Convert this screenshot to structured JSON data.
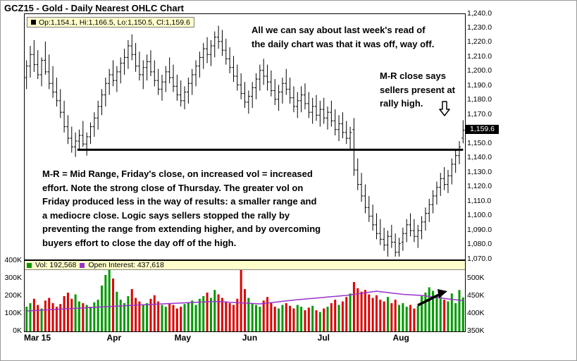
{
  "window_title": "GCZ15 - Gold - Daily Nearest OHLC Chart",
  "price_panel": {
    "ohlc_legend": "Op:1,154.1, Hi:1,166.5, Lo:1,150.5, Cl:1,159.6",
    "last_price_label": "1,159.6",
    "annotations": {
      "top_lines": [
        "All we can say about last week's read of",
        "the daily chart was that it was off, way off."
      ],
      "mr_lines": [
        "M-R close says",
        "sellers present at",
        "rally high."
      ],
      "paragraph_lines": [
        "M-R = Mid Range, Friday's close, on increased vol = increased",
        "effort.  Note the strong close of Thursday.  The greater vol on",
        "Friday produced less in the way of results: a smaller range and",
        "a mediocre close.  Logic says sellers stopped the rally by",
        "preventing the range from extending higher, and by overcoming",
        "buyers effort to close the day off of the high."
      ]
    }
  },
  "volume_panel": {
    "vol_legend": "Vol: 192,568",
    "oi_legend": "Open Interest: 437,618"
  },
  "colors": {
    "bar_color": "#000000",
    "up_volume": "#009900",
    "down_volume": "#dd0000",
    "oi_line": "#9933cc",
    "legend_bg": "#ffffcc",
    "last_price_bg": "#000000",
    "last_price_fg": "#ffffff"
  },
  "chart_data": {
    "type": "ohlc",
    "title": "GCZ15 - Gold - Daily Nearest OHLC Chart",
    "price_axis_range": [
      1070,
      1240
    ],
    "price_axis_tick_labels": [
      "1,240.0",
      "1,230.0",
      "1,220.0",
      "1,210.0",
      "1,200.0",
      "1,190.0",
      "1,180.0",
      "1,170.0",
      "1,160.0",
      "1,150.0",
      "1,140.0",
      "1,130.0",
      "1,120.0",
      "1,110.0",
      "1,100.0",
      "1,090.0",
      "1,080.0",
      "1,070.0"
    ],
    "volume_axis_range_thousands": [
      0,
      400
    ],
    "volume_axis_tick_labels": [
      "400K",
      "300K",
      "200K",
      "100K",
      "0K"
    ],
    "oi_axis_range_thousands": [
      350,
      550
    ],
    "oi_axis_tick_labels": [
      "500K",
      "450K",
      "400K",
      "350K"
    ],
    "x_axis_tick_labels": [
      "Mar 15",
      "Apr",
      "May",
      "Jun",
      "Jul",
      "Aug"
    ],
    "months": [
      {
        "label": "Mar 15",
        "index": 0
      },
      {
        "label": "Apr",
        "index": 22
      },
      {
        "label": "May",
        "index": 40
      },
      {
        "label": "Jun",
        "index": 58
      },
      {
        "label": "Jul",
        "index": 78
      },
      {
        "label": "Aug",
        "index": 98
      }
    ],
    "support_line": {
      "price": 1146,
      "from_index": 14,
      "to_index": 116
    },
    "last_bar": {
      "open": 1154.1,
      "high": 1166.5,
      "low": 1150.5,
      "close": 1159.6
    },
    "last_volume": 192568,
    "last_open_interest": 437618,
    "bars_ohlc": [
      [
        1196,
        1208,
        1188,
        1204
      ],
      [
        1204,
        1218,
        1196,
        1212
      ],
      [
        1212,
        1222,
        1200,
        1205
      ],
      [
        1205,
        1215,
        1195,
        1198
      ],
      [
        1198,
        1210,
        1190,
        1208
      ],
      [
        1208,
        1221,
        1198,
        1200
      ],
      [
        1200,
        1212,
        1188,
        1192
      ],
      [
        1192,
        1204,
        1182,
        1186
      ],
      [
        1186,
        1196,
        1176,
        1180
      ],
      [
        1180,
        1188,
        1168,
        1172
      ],
      [
        1172,
        1180,
        1158,
        1162
      ],
      [
        1162,
        1170,
        1150,
        1154
      ],
      [
        1154,
        1162,
        1144,
        1148
      ],
      [
        1148,
        1158,
        1141,
        1152
      ],
      [
        1152,
        1160,
        1146,
        1156
      ],
      [
        1156,
        1166,
        1148,
        1150
      ],
      [
        1150,
        1158,
        1142,
        1155
      ],
      [
        1155,
        1165,
        1150,
        1162
      ],
      [
        1162,
        1172,
        1155,
        1168
      ],
      [
        1168,
        1180,
        1160,
        1176
      ],
      [
        1176,
        1188,
        1170,
        1184
      ],
      [
        1184,
        1196,
        1176,
        1192
      ],
      [
        1192,
        1202,
        1184,
        1198
      ],
      [
        1198,
        1208,
        1190,
        1194
      ],
      [
        1194,
        1204,
        1186,
        1200
      ],
      [
        1200,
        1210,
        1192,
        1206
      ],
      [
        1206,
        1216,
        1198,
        1210
      ],
      [
        1210,
        1222,
        1202,
        1218
      ],
      [
        1218,
        1226,
        1208,
        1212
      ],
      [
        1212,
        1220,
        1200,
        1204
      ],
      [
        1204,
        1214,
        1194,
        1198
      ],
      [
        1198,
        1208,
        1188,
        1203
      ],
      [
        1203,
        1212,
        1194,
        1207
      ],
      [
        1207,
        1215,
        1197,
        1200
      ],
      [
        1200,
        1208,
        1190,
        1194
      ],
      [
        1194,
        1202,
        1184,
        1188
      ],
      [
        1188,
        1198,
        1180,
        1193
      ],
      [
        1193,
        1204,
        1186,
        1200
      ],
      [
        1200,
        1210,
        1192,
        1196
      ],
      [
        1196,
        1205,
        1186,
        1190
      ],
      [
        1190,
        1198,
        1180,
        1184
      ],
      [
        1184,
        1194,
        1176,
        1180
      ],
      [
        1180,
        1190,
        1174,
        1186
      ],
      [
        1186,
        1196,
        1178,
        1192
      ],
      [
        1192,
        1202,
        1184,
        1198
      ],
      [
        1198,
        1208,
        1190,
        1204
      ],
      [
        1204,
        1214,
        1196,
        1210
      ],
      [
        1210,
        1220,
        1202,
        1216
      ],
      [
        1216,
        1224,
        1206,
        1212
      ],
      [
        1212,
        1222,
        1204,
        1218
      ],
      [
        1218,
        1228,
        1210,
        1224
      ],
      [
        1224,
        1232,
        1216,
        1221
      ],
      [
        1221,
        1229,
        1211,
        1215
      ],
      [
        1215,
        1223,
        1205,
        1209
      ],
      [
        1209,
        1217,
        1199,
        1203
      ],
      [
        1203,
        1211,
        1193,
        1197
      ],
      [
        1197,
        1205,
        1187,
        1191
      ],
      [
        1191,
        1199,
        1181,
        1185
      ],
      [
        1185,
        1193,
        1175,
        1179
      ],
      [
        1179,
        1187,
        1171,
        1183
      ],
      [
        1183,
        1193,
        1175,
        1189
      ],
      [
        1189,
        1199,
        1181,
        1195
      ],
      [
        1195,
        1205,
        1187,
        1201
      ],
      [
        1201,
        1209,
        1191,
        1197
      ],
      [
        1197,
        1205,
        1187,
        1193
      ],
      [
        1193,
        1201,
        1183,
        1187
      ],
      [
        1187,
        1195,
        1177,
        1181
      ],
      [
        1181,
        1191,
        1173,
        1186
      ],
      [
        1186,
        1196,
        1178,
        1192
      ],
      [
        1192,
        1202,
        1184,
        1188
      ],
      [
        1188,
        1196,
        1178,
        1182
      ],
      [
        1182,
        1190,
        1172,
        1176
      ],
      [
        1176,
        1186,
        1168,
        1180
      ],
      [
        1180,
        1190,
        1172,
        1184
      ],
      [
        1184,
        1192,
        1174,
        1178
      ],
      [
        1178,
        1186,
        1168,
        1172
      ],
      [
        1172,
        1182,
        1164,
        1176
      ],
      [
        1176,
        1184,
        1166,
        1170
      ],
      [
        1170,
        1180,
        1162,
        1174
      ],
      [
        1174,
        1182,
        1164,
        1168
      ],
      [
        1168,
        1176,
        1160,
        1172
      ],
      [
        1172,
        1180,
        1162,
        1166
      ],
      [
        1166,
        1174,
        1156,
        1160
      ],
      [
        1160,
        1170,
        1152,
        1164
      ],
      [
        1164,
        1172,
        1154,
        1158
      ],
      [
        1158,
        1166,
        1150,
        1154
      ],
      [
        1154,
        1162,
        1146,
        1158
      ],
      [
        1160,
        1168,
        1128,
        1132
      ],
      [
        1132,
        1140,
        1118,
        1122
      ],
      [
        1122,
        1130,
        1110,
        1114
      ],
      [
        1114,
        1122,
        1102,
        1106
      ],
      [
        1106,
        1114,
        1096,
        1100
      ],
      [
        1100,
        1108,
        1090,
        1094
      ],
      [
        1094,
        1102,
        1084,
        1088
      ],
      [
        1088,
        1098,
        1080,
        1084
      ],
      [
        1084,
        1092,
        1076,
        1080
      ],
      [
        1080,
        1090,
        1072,
        1086
      ],
      [
        1086,
        1094,
        1078,
        1082
      ],
      [
        1082,
        1088,
        1072,
        1075
      ],
      [
        1075,
        1085,
        1072,
        1081
      ],
      [
        1082,
        1092,
        1076,
        1088
      ],
      [
        1088,
        1098,
        1082,
        1094
      ],
      [
        1094,
        1102,
        1086,
        1090
      ],
      [
        1090,
        1098,
        1082,
        1086
      ],
      [
        1086,
        1094,
        1078,
        1090
      ],
      [
        1090,
        1100,
        1084,
        1096
      ],
      [
        1096,
        1106,
        1090,
        1102
      ],
      [
        1102,
        1112,
        1096,
        1108
      ],
      [
        1108,
        1118,
        1102,
        1114
      ],
      [
        1114,
        1124,
        1108,
        1120
      ],
      [
        1120,
        1130,
        1114,
        1126
      ],
      [
        1126,
        1134,
        1118,
        1122
      ],
      [
        1122,
        1132,
        1116,
        1128
      ],
      [
        1128,
        1140,
        1122,
        1136
      ],
      [
        1136,
        1146,
        1130,
        1142
      ],
      [
        1142,
        1152,
        1136,
        1148
      ],
      [
        1154.1,
        1166.5,
        1150.5,
        1159.6
      ]
    ],
    "volume_thousands": [
      140,
      160,
      185,
      150,
      130,
      175,
      190,
      160,
      140,
      155,
      200,
      220,
      185,
      210,
      170,
      160,
      150,
      140,
      165,
      180,
      260,
      320,
      375,
      300,
      225,
      180,
      160,
      200,
      240,
      190,
      170,
      150,
      160,
      185,
      205,
      170,
      150,
      140,
      160,
      150,
      130,
      140,
      155,
      160,
      175,
      150,
      185,
      200,
      220,
      190,
      235,
      210,
      190,
      170,
      160,
      150,
      185,
      355,
      240,
      190,
      160,
      150,
      140,
      175,
      195,
      160,
      140,
      130,
      150,
      160,
      145,
      130,
      150,
      140,
      120,
      135,
      145,
      120,
      110,
      130,
      140,
      160,
      180,
      150,
      170,
      195,
      215,
      280,
      245,
      225,
      235,
      210,
      190,
      205,
      180,
      170,
      195,
      160,
      180,
      150,
      160,
      140,
      150,
      130,
      145,
      200,
      220,
      250,
      230,
      190,
      205,
      180,
      170,
      215,
      160,
      235,
      192.6
    ],
    "open_interest_thousands": [
      408.0,
      408.6,
      409.1,
      409.7,
      410.3,
      410.8,
      411.4,
      412.0,
      412.5,
      413.1,
      413.7,
      414.2,
      414.8,
      415.4,
      415.9,
      416.5,
      417.1,
      417.6,
      418.2,
      418.8,
      419.3,
      419.9,
      420.5,
      421.0,
      421.6,
      422.2,
      422.7,
      423.3,
      423.9,
      424.4,
      425.0,
      425.5,
      426.0,
      426.5,
      427.0,
      427.5,
      428.0,
      428.5,
      429.0,
      429.5,
      430.0,
      430.5,
      431.0,
      431.5,
      432.0,
      432.5,
      433.0,
      433.5,
      434.0,
      434.5,
      435.0,
      434.4,
      433.8,
      433.3,
      432.7,
      432.1,
      431.5,
      430.9,
      430.3,
      429.8,
      429.2,
      428.6,
      428.0,
      429.2,
      430.4,
      431.6,
      432.8,
      434.0,
      435.2,
      436.4,
      437.6,
      438.8,
      440.0,
      440.9,
      441.8,
      442.8,
      443.7,
      444.6,
      445.5,
      446.5,
      447.4,
      448.3,
      449.2,
      450.2,
      451.1,
      452.0,
      453.5,
      455.0,
      456.5,
      458.0,
      459.5,
      461.0,
      462.5,
      464.0,
      462.7,
      461.4,
      460.1,
      458.9,
      457.6,
      456.3,
      455.0,
      454.4,
      453.8,
      453.2,
      452.6,
      452.0,
      450.6,
      449.1,
      447.7,
      446.3,
      444.9,
      443.4,
      442.0,
      440.9,
      439.8,
      438.7,
      437.6
    ]
  }
}
